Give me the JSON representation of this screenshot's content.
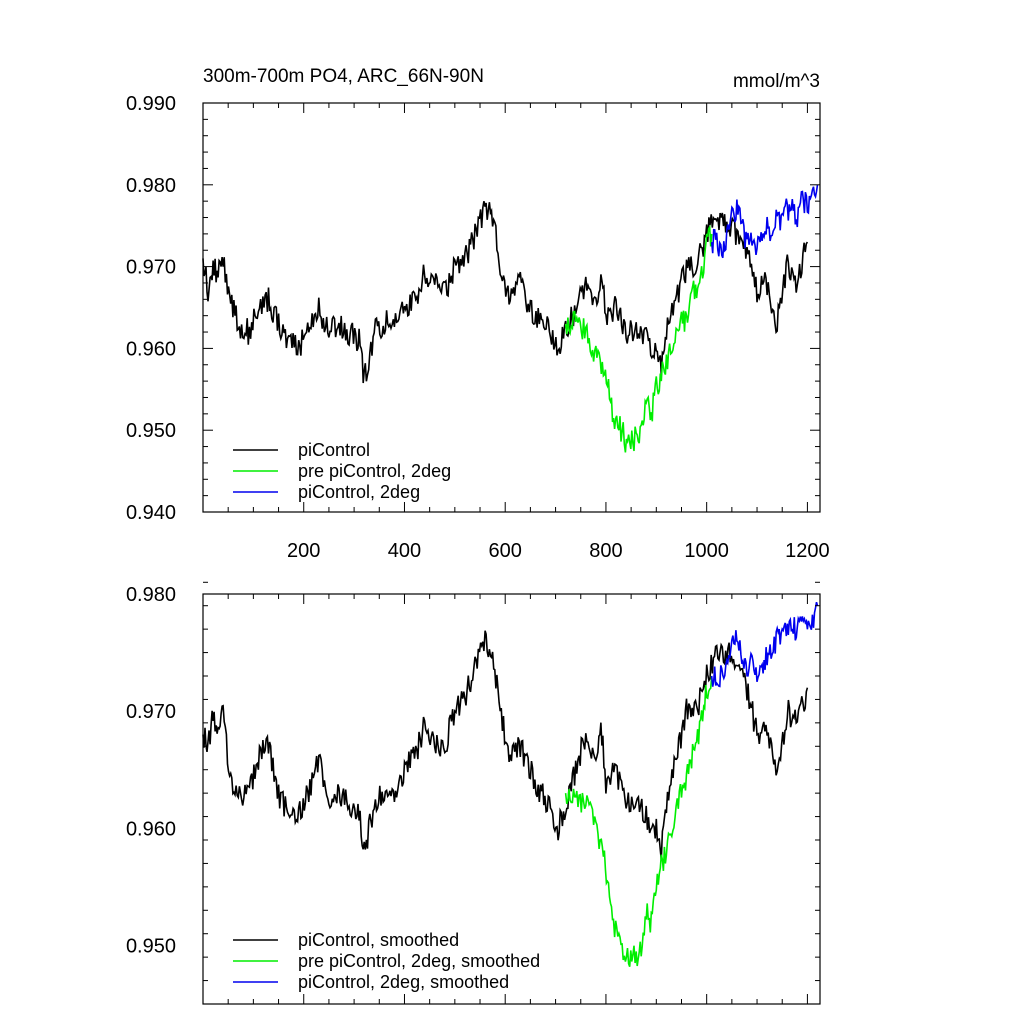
{
  "figure": {
    "title_left": "300m-700m PO4, ARC_66N-90N",
    "title_right": "mmol/m^3"
  },
  "chart_data": [
    {
      "type": "line",
      "panel": "top",
      "xlim": [
        0,
        1225
      ],
      "ylim": [
        0.94,
        0.99
      ],
      "xticks": [
        200,
        400,
        600,
        800,
        1000,
        1200
      ],
      "xtick_labels": [
        "200",
        "400",
        "600",
        "800",
        "1000",
        "1200"
      ],
      "yticks": [
        0.94,
        0.95,
        0.96,
        0.97,
        0.98,
        0.99
      ],
      "ytick_labels": [
        "0.940",
        "0.950",
        "0.960",
        "0.970",
        "0.980",
        "0.990"
      ],
      "grid": false,
      "legend_position": "bottom-left",
      "series": [
        {
          "name": "piControl",
          "color": "#000000",
          "x": [
            0,
            10,
            20,
            30,
            40,
            55,
            70,
            90,
            110,
            130,
            150,
            170,
            190,
            210,
            230,
            250,
            270,
            290,
            310,
            320,
            340,
            360,
            380,
            400,
            420,
            440,
            460,
            480,
            500,
            520,
            540,
            560,
            575,
            590,
            610,
            630,
            650,
            670,
            690,
            705,
            720,
            740,
            760,
            780,
            790,
            800,
            820,
            840,
            860,
            880,
            900,
            910,
            920,
            940,
            960,
            980,
            1000,
            1020,
            1040,
            1060,
            1080,
            1100,
            1120,
            1140,
            1160,
            1180,
            1200
          ],
          "y": [
            0.971,
            0.967,
            0.97,
            0.969,
            0.971,
            0.966,
            0.963,
            0.962,
            0.965,
            0.966,
            0.963,
            0.961,
            0.96,
            0.963,
            0.965,
            0.962,
            0.963,
            0.962,
            0.961,
            0.956,
            0.962,
            0.963,
            0.964,
            0.965,
            0.966,
            0.969,
            0.968,
            0.967,
            0.97,
            0.971,
            0.974,
            0.977,
            0.976,
            0.97,
            0.966,
            0.968,
            0.965,
            0.963,
            0.962,
            0.96,
            0.962,
            0.965,
            0.968,
            0.965,
            0.969,
            0.964,
            0.965,
            0.962,
            0.962,
            0.961,
            0.96,
            0.958,
            0.962,
            0.966,
            0.97,
            0.97,
            0.974,
            0.976,
            0.975,
            0.974,
            0.972,
            0.967,
            0.968,
            0.963,
            0.97,
            0.968,
            0.973
          ]
        },
        {
          "name": "pre piControl, 2deg",
          "color": "#00ee00",
          "x": [
            720,
            740,
            760,
            780,
            795,
            805,
            815,
            830,
            845,
            860,
            870,
            880,
            890,
            900,
            910,
            920,
            935,
            950,
            960,
            970,
            980,
            990,
            1000,
            1010
          ],
          "y": [
            0.963,
            0.964,
            0.962,
            0.959,
            0.957,
            0.955,
            0.952,
            0.95,
            0.948,
            0.949,
            0.95,
            0.953,
            0.952,
            0.955,
            0.957,
            0.958,
            0.961,
            0.963,
            0.964,
            0.967,
            0.967,
            0.969,
            0.973,
            0.974
          ]
        },
        {
          "name": "piControl, 2deg",
          "color": "#0000ee",
          "x": [
            1010,
            1020,
            1030,
            1040,
            1050,
            1060,
            1070,
            1080,
            1090,
            1100,
            1110,
            1120,
            1130,
            1140,
            1150,
            1160,
            1170,
            1180,
            1190,
            1200,
            1210,
            1220
          ],
          "y": [
            0.973,
            0.973,
            0.972,
            0.974,
            0.976,
            0.977,
            0.975,
            0.973,
            0.974,
            0.972,
            0.973,
            0.975,
            0.974,
            0.976,
            0.976,
            0.977,
            0.977,
            0.976,
            0.978,
            0.978,
            0.978,
            0.98
          ]
        }
      ]
    },
    {
      "type": "line",
      "panel": "bottom",
      "xlim": [
        0,
        1225
      ],
      "ylim": [
        0.945,
        0.98
      ],
      "xticks": [
        200,
        400,
        600,
        800,
        1000,
        1200
      ],
      "yticks": [
        0.95,
        0.96,
        0.97,
        0.98
      ],
      "ytick_labels": [
        "0.950",
        "0.960",
        "0.970",
        "0.980"
      ],
      "grid": false,
      "legend_position": "bottom-left",
      "series": [
        {
          "name": "piControl, smoothed",
          "color": "#000000",
          "x": [
            0,
            10,
            20,
            30,
            40,
            55,
            70,
            90,
            110,
            130,
            150,
            170,
            190,
            210,
            230,
            250,
            270,
            290,
            310,
            320,
            340,
            360,
            380,
            400,
            420,
            440,
            460,
            480,
            500,
            520,
            540,
            560,
            575,
            590,
            610,
            630,
            650,
            670,
            690,
            705,
            720,
            740,
            760,
            780,
            790,
            800,
            820,
            840,
            860,
            880,
            900,
            910,
            920,
            940,
            960,
            980,
            1000,
            1020,
            1040,
            1060,
            1080,
            1100,
            1120,
            1140,
            1160,
            1180,
            1200
          ],
          "y": [
            0.968,
            0.967,
            0.97,
            0.968,
            0.97,
            0.964,
            0.963,
            0.963,
            0.966,
            0.967,
            0.963,
            0.961,
            0.961,
            0.963,
            0.966,
            0.962,
            0.963,
            0.962,
            0.961,
            0.958,
            0.962,
            0.963,
            0.963,
            0.965,
            0.966,
            0.969,
            0.967,
            0.967,
            0.97,
            0.971,
            0.974,
            0.976,
            0.975,
            0.97,
            0.966,
            0.967,
            0.965,
            0.963,
            0.962,
            0.96,
            0.962,
            0.965,
            0.968,
            0.965,
            0.969,
            0.964,
            0.965,
            0.962,
            0.962,
            0.961,
            0.96,
            0.958,
            0.962,
            0.966,
            0.97,
            0.97,
            0.973,
            0.975,
            0.975,
            0.974,
            0.972,
            0.968,
            0.968,
            0.964,
            0.97,
            0.969,
            0.972
          ]
        },
        {
          "name": "pre piControl, 2deg, smoothed",
          "color": "#00ee00",
          "x": [
            720,
            740,
            760,
            780,
            795,
            805,
            815,
            830,
            845,
            860,
            870,
            880,
            890,
            900,
            910,
            920,
            935,
            950,
            960,
            970,
            980,
            990,
            1000,
            1010
          ],
          "y": [
            0.963,
            0.963,
            0.962,
            0.96,
            0.958,
            0.955,
            0.952,
            0.95,
            0.949,
            0.949,
            0.95,
            0.953,
            0.952,
            0.955,
            0.957,
            0.958,
            0.961,
            0.963,
            0.964,
            0.966,
            0.967,
            0.969,
            0.972,
            0.973
          ]
        },
        {
          "name": "piControl, 2deg, smoothed",
          "color": "#0000ee",
          "x": [
            1010,
            1020,
            1030,
            1040,
            1050,
            1060,
            1070,
            1080,
            1090,
            1100,
            1110,
            1120,
            1130,
            1140,
            1150,
            1160,
            1170,
            1180,
            1190,
            1200,
            1210,
            1220
          ],
          "y": [
            0.973,
            0.973,
            0.973,
            0.974,
            0.976,
            0.976,
            0.975,
            0.974,
            0.974,
            0.973,
            0.974,
            0.975,
            0.975,
            0.976,
            0.976,
            0.977,
            0.977,
            0.977,
            0.978,
            0.978,
            0.978,
            0.979
          ]
        }
      ]
    }
  ]
}
